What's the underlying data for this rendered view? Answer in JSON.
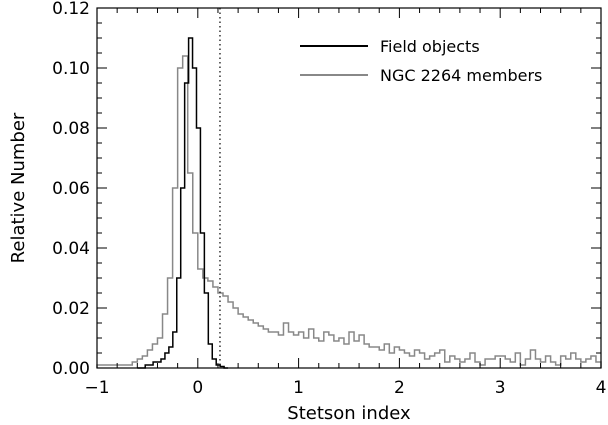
{
  "chart_data": {
    "type": "line",
    "subtype": "step-histogram",
    "title": "",
    "xlabel": "Stetson index",
    "ylabel": "Relative Number",
    "xlim": [
      -1,
      4
    ],
    "ylim": [
      0,
      0.12
    ],
    "x_ticks": [
      -1,
      0,
      1,
      2,
      3,
      4
    ],
    "x_tick_labels": [
      "−1",
      "0",
      "1",
      "2",
      "3",
      "4"
    ],
    "y_ticks": [
      0,
      0.02,
      0.04,
      0.06,
      0.08,
      0.1,
      0.12
    ],
    "y_tick_labels": [
      "0.00",
      "0.02",
      "0.04",
      "0.06",
      "0.08",
      "0.10",
      "0.12"
    ],
    "reference_line": {
      "x": 0.22,
      "style": "dotted"
    },
    "legend": {
      "placement": "top-right"
    },
    "series": [
      {
        "name": "Field objects",
        "color": "#000000",
        "bins": [
          -0.6,
          0.3
        ],
        "values": [
          0.0,
          0.0,
          0.001,
          0.001,
          0.002,
          0.002,
          0.003,
          0.005,
          0.007,
          0.012,
          0.03,
          0.06,
          0.095,
          0.11,
          0.1,
          0.08,
          0.045,
          0.025,
          0.008,
          0.003,
          0.001,
          0.0005,
          0.0
        ]
      },
      {
        "name": "NGC 2264 members",
        "color": "#888888",
        "bins": [
          -1.0,
          4.0
        ],
        "values": [
          0.001,
          0.001,
          0.001,
          0.001,
          0.001,
          0.001,
          0.001,
          0.002,
          0.003,
          0.004,
          0.006,
          0.008,
          0.01,
          0.018,
          0.03,
          0.06,
          0.1,
          0.104,
          0.065,
          0.045,
          0.033,
          0.03,
          0.029,
          0.027,
          0.025,
          0.024,
          0.022,
          0.02,
          0.018,
          0.017,
          0.016,
          0.015,
          0.014,
          0.013,
          0.012,
          0.012,
          0.011,
          0.015,
          0.012,
          0.011,
          0.012,
          0.01,
          0.013,
          0.01,
          0.009,
          0.012,
          0.011,
          0.009,
          0.01,
          0.008,
          0.012,
          0.009,
          0.011,
          0.008,
          0.007,
          0.007,
          0.006,
          0.008,
          0.005,
          0.007,
          0.006,
          0.005,
          0.004,
          0.006,
          0.005,
          0.003,
          0.004,
          0.005,
          0.006,
          0.002,
          0.004,
          0.003,
          0.002,
          0.003,
          0.005,
          0.002,
          0.001,
          0.003,
          0.003,
          0.004,
          0.004,
          0.003,
          0.002,
          0.005,
          0.001,
          0.003,
          0.006,
          0.003,
          0.002,
          0.004,
          0.002,
          0.001,
          0.004,
          0.003,
          0.005,
          0.003,
          0.002,
          0.003,
          0.004,
          0.002
        ]
      }
    ]
  }
}
